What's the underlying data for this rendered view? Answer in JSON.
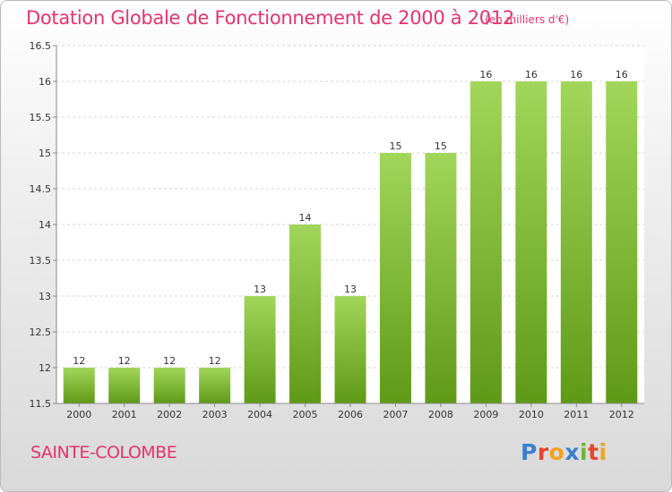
{
  "header": {
    "title": "Dotation Globale de Fonctionnement de 2000 à 2012",
    "unit": "(en milliers d'€)"
  },
  "footer": {
    "place": "SAINTE-COLOMBE",
    "logo_letters": [
      {
        "char": "P",
        "color": "#3a7fd0"
      },
      {
        "char": "r",
        "color": "#e8432e"
      },
      {
        "char": "o",
        "color": "#f2a21f"
      },
      {
        "char": "x",
        "color": "#3a7fd0"
      },
      {
        "char": "i",
        "color": "#6cb52f"
      },
      {
        "char": "t",
        "color": "#e8432e"
      },
      {
        "char": "i",
        "color": "#f2a21f"
      }
    ]
  },
  "colors": {
    "accent": "#e8336d",
    "bar_top": "#a2d65a",
    "bar_bottom": "#5f9a17"
  },
  "chart_data": {
    "type": "bar",
    "title": "Dotation Globale de Fonctionnement de 2000 à 2012",
    "subtitle": "(en milliers d'€)",
    "xlabel": "",
    "ylabel": "",
    "categories": [
      "2000",
      "2001",
      "2002",
      "2003",
      "2004",
      "2005",
      "2006",
      "2007",
      "2008",
      "2009",
      "2010",
      "2011",
      "2012"
    ],
    "values": [
      12,
      12,
      12,
      12,
      13,
      14,
      13,
      15,
      15,
      16,
      16,
      16,
      16
    ],
    "ylim": [
      11.5,
      16.5
    ],
    "yticks": [
      "11.5",
      "12",
      "12.5",
      "13",
      "13.5",
      "14",
      "14.5",
      "15",
      "15.5",
      "16",
      "16.5"
    ],
    "grid": true
  }
}
